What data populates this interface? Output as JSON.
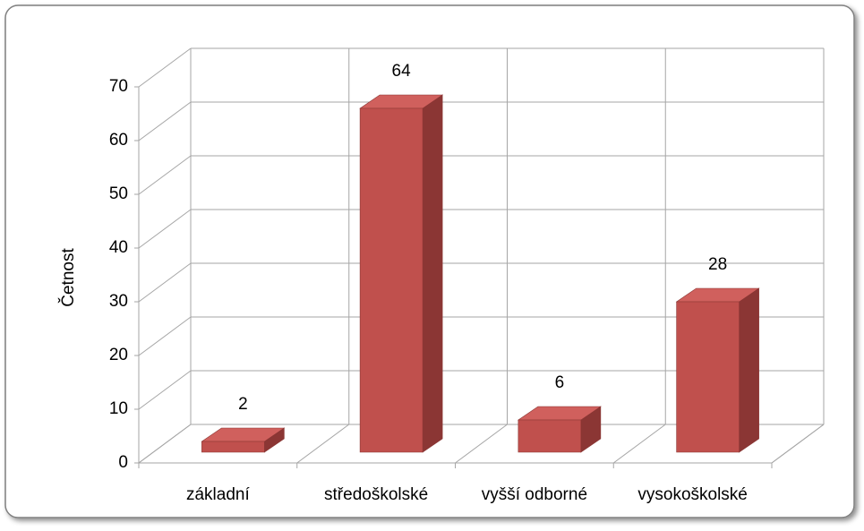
{
  "chart_data": {
    "type": "bar",
    "y_label": "Četnost",
    "categories": [
      "základní",
      "středoškolské",
      "vyšší odborné",
      "vysokoškolské"
    ],
    "values": [
      2,
      64,
      6,
      28
    ],
    "color": "#c0504d",
    "ylim": [
      0,
      70
    ],
    "yticks": [
      0,
      10,
      20,
      30,
      40,
      50,
      60,
      70
    ],
    "grid": true
  }
}
